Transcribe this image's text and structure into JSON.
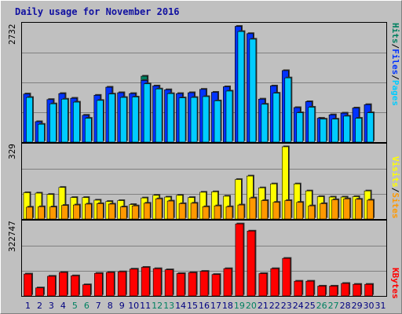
{
  "title": "Daily usage for November 2016",
  "colors": {
    "pages": "#00ccff",
    "files": "#0033ff",
    "hits": "#008060",
    "visits": "#ffff00",
    "sites": "#ff9900",
    "kbytes": "#ff0000",
    "weekend_day": "#008060",
    "weekday": "#000080"
  },
  "chart_data": [
    {
      "type": "bar",
      "title": "Daily usage for November 2016",
      "ylabel": "2732",
      "ymax": 2732,
      "legend": [
        "Pages",
        "Files",
        "Hits"
      ],
      "categories": [
        "1",
        "2",
        "3",
        "4",
        "5",
        "6",
        "7",
        "8",
        "9",
        "10",
        "11",
        "12",
        "13",
        "14",
        "15",
        "16",
        "17",
        "18",
        "19",
        "20",
        "21",
        "22",
        "23",
        "24",
        "25",
        "26",
        "27",
        "28",
        "29",
        "30",
        "31"
      ],
      "series": [
        {
          "name": "Hits",
          "values": [
            1130,
            480,
            1000,
            1140,
            1030,
            630,
            1100,
            1290,
            1160,
            1140,
            1550,
            1320,
            1230,
            1140,
            1160,
            1240,
            1170,
            1300,
            2720,
            2550,
            1010,
            1320,
            1680,
            810,
            950,
            560,
            640,
            680,
            800,
            880,
            0
          ]
        },
        {
          "name": "Files",
          "values": [
            1130,
            480,
            1000,
            1140,
            1030,
            630,
            1100,
            1290,
            1160,
            1140,
            1450,
            1320,
            1230,
            1140,
            1160,
            1240,
            1170,
            1300,
            2720,
            2550,
            1010,
            1320,
            1680,
            810,
            950,
            560,
            640,
            680,
            800,
            880,
            0
          ]
        },
        {
          "name": "Pages",
          "values": [
            1050,
            420,
            900,
            1010,
            940,
            560,
            980,
            1130,
            1050,
            1060,
            1370,
            1250,
            1140,
            1040,
            1050,
            1070,
            970,
            1200,
            2600,
            2420,
            890,
            1150,
            1510,
            690,
            820,
            540,
            540,
            610,
            560,
            690,
            0
          ]
        }
      ]
    },
    {
      "type": "bar",
      "ylabel": "329",
      "ymax": 329,
      "legend": [
        "Sites",
        "Visits"
      ],
      "categories": [
        "1",
        "2",
        "3",
        "4",
        "5",
        "6",
        "7",
        "8",
        "9",
        "10",
        "11",
        "12",
        "13",
        "14",
        "15",
        "16",
        "17",
        "18",
        "19",
        "20",
        "21",
        "22",
        "23",
        "24",
        "25",
        "26",
        "27",
        "28",
        "29",
        "30",
        "31"
      ],
      "series": [
        {
          "name": "Visits",
          "values": [
            120,
            118,
            112,
            144,
            98,
            98,
            86,
            80,
            84,
            66,
            96,
            108,
            100,
            108,
            98,
            122,
            124,
            104,
            180,
            196,
            142,
            160,
            329,
            160,
            128,
            102,
            100,
            100,
            102,
            128,
            0
          ]
        },
        {
          "name": "Sites",
          "values": [
            54,
            56,
            55,
            62,
            64,
            68,
            70,
            68,
            55,
            60,
            72,
            92,
            82,
            70,
            72,
            56,
            60,
            56,
            64,
            96,
            84,
            76,
            84,
            76,
            60,
            70,
            88,
            92,
            90,
            86,
            0
          ]
        }
      ]
    },
    {
      "type": "bar",
      "ylabel": "322747",
      "ymax": 322747,
      "legend": [
        "KBytes"
      ],
      "categories": [
        "1",
        "2",
        "3",
        "4",
        "5",
        "6",
        "7",
        "8",
        "9",
        "10",
        "11",
        "12",
        "13",
        "14",
        "15",
        "16",
        "17",
        "18",
        "19",
        "20",
        "21",
        "22",
        "23",
        "24",
        "25",
        "26",
        "27",
        "28",
        "29",
        "30",
        "31"
      ],
      "series": [
        {
          "name": "KBytes",
          "values": [
            98000,
            36000,
            88000,
            105000,
            90000,
            50000,
            101000,
            105000,
            108000,
            120000,
            128000,
            122000,
            117000,
            100000,
            104000,
            110000,
            96000,
            122000,
            322000,
            290000,
            100000,
            122000,
            168000,
            66000,
            66000,
            44000,
            44000,
            56000,
            52000,
            52000,
            0
          ]
        }
      ]
    }
  ],
  "xaxis": {
    "labels": [
      "1",
      "2",
      "3",
      "4",
      "5",
      "6",
      "7",
      "8",
      "9",
      "10",
      "11",
      "12",
      "13",
      "14",
      "15",
      "16",
      "17",
      "18",
      "19",
      "20",
      "21",
      "22",
      "23",
      "24",
      "25",
      "26",
      "27",
      "28",
      "29",
      "30",
      "31"
    ],
    "weekend": [
      "5",
      "6",
      "12",
      "13",
      "19",
      "20",
      "26",
      "27"
    ]
  },
  "legend_top": {
    "pages": "Pages",
    "files": "Files",
    "hits": "Hits",
    "sep": "/"
  },
  "legend_mid": {
    "sites": "Sites",
    "visits": "Visits",
    "sep": "/"
  },
  "legend_bot": {
    "kbytes": "KBytes"
  }
}
